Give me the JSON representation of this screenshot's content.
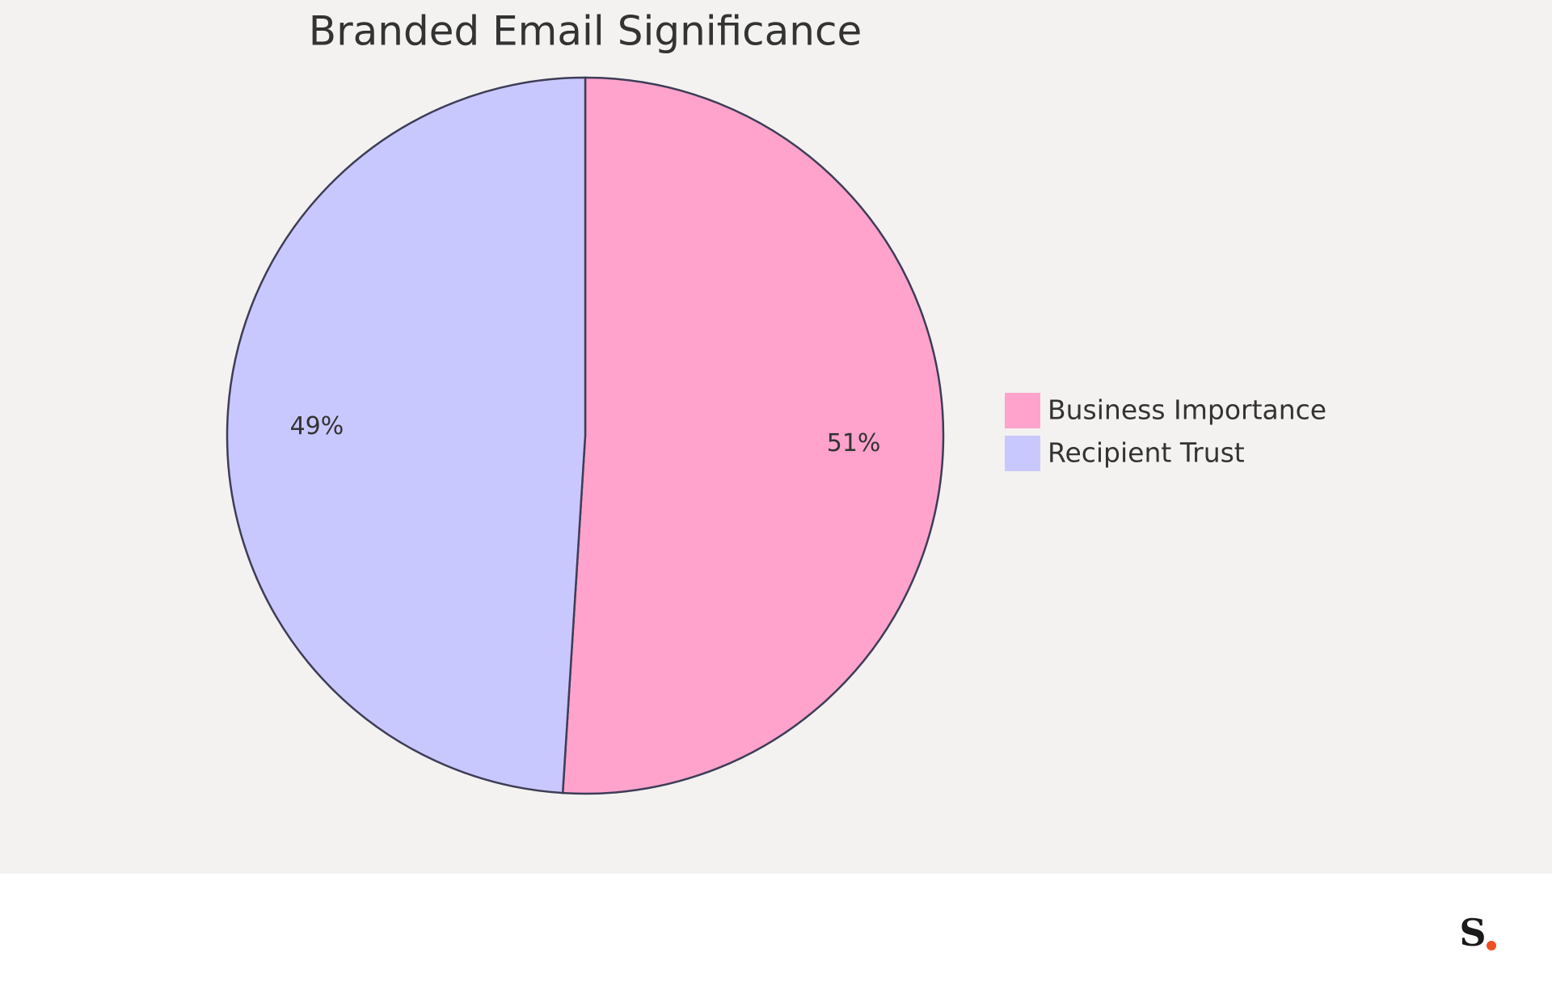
{
  "chart_data": {
    "type": "pie",
    "title": "Branded Email Significance",
    "categories": [
      "Business Importance",
      "Recipient Trust"
    ],
    "values": [
      51,
      49
    ],
    "value_labels": [
      "51%",
      "49%"
    ],
    "colors": [
      "#ffa3cc",
      "#c9c8fe"
    ]
  },
  "footer": {
    "logo": "S"
  }
}
